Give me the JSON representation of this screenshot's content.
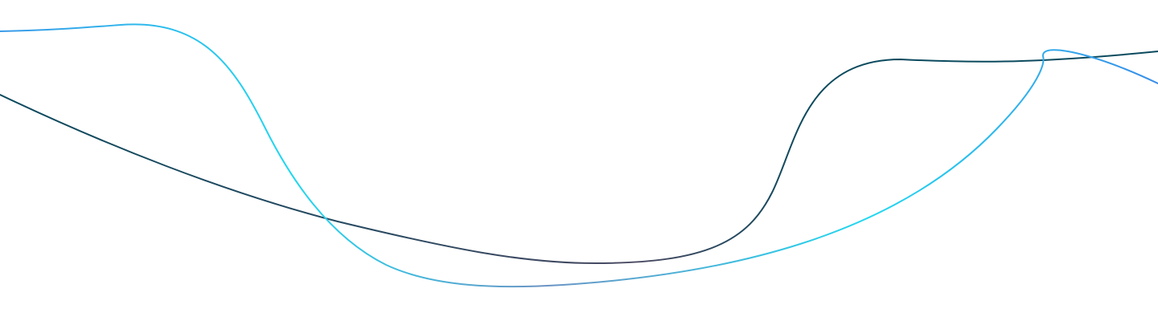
{
  "decoration": {
    "curves": [
      {
        "name": "dark-wave",
        "stroke_stops": [
          "#0b4a5e",
          "#2d4a62",
          "#4a4a62",
          "#0b4a5e",
          "#0b4a5e"
        ]
      },
      {
        "name": "cyan-wave",
        "stroke_stops": [
          "#3a9ae8",
          "#22d8f0",
          "#6b94c4",
          "#22d8f0",
          "#3a8ee8"
        ]
      }
    ]
  }
}
